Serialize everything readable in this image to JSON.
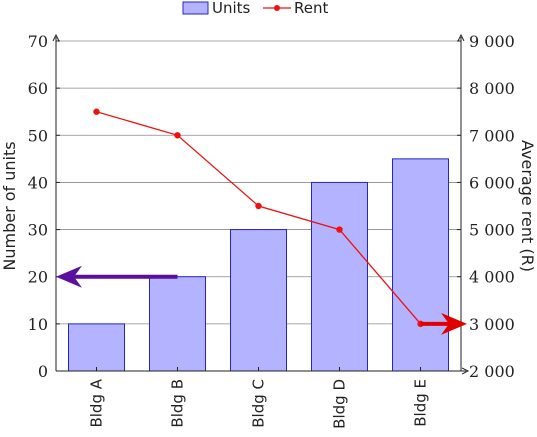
{
  "chart_data": {
    "type": "bar",
    "categories": [
      "Bldg A",
      "Bldg B",
      "Bldg C",
      "Bldg D",
      "Bldg E"
    ],
    "series": [
      {
        "name": "Units",
        "type": "bar",
        "axis": "left",
        "values": [
          10,
          20,
          30,
          40,
          45
        ]
      },
      {
        "name": "Rent",
        "type": "line",
        "axis": "right",
        "values": [
          7500,
          7000,
          5500,
          5000,
          3000
        ]
      }
    ],
    "ylabel": "Number of units",
    "y2label": "Average rent (R)",
    "ylim": [
      0,
      70
    ],
    "y2lim": [
      2000,
      9000
    ],
    "yticks": [
      "0",
      "10",
      "20",
      "30",
      "40",
      "50",
      "60",
      "70"
    ],
    "y2ticks": [
      "2 000",
      "3 000",
      "4 000",
      "5 000",
      "6 000",
      "7 000",
      "8 000",
      "9 000"
    ],
    "grid": true,
    "legend": "top-center",
    "annotations": [
      {
        "type": "arrow",
        "target": "left-axis",
        "color": "#5b0f9f",
        "from": {
          "x": "Bldg B",
          "y": 20
        },
        "to": {
          "x": "axis-left",
          "y": 20
        }
      },
      {
        "type": "arrow",
        "target": "right-axis",
        "color": "#e00000",
        "from": {
          "x": "Bldg E",
          "y": 3000
        },
        "to": {
          "x": "axis-right",
          "y": 3000
        }
      }
    ],
    "colors": {
      "bar_fill": "#b3b3ff",
      "bar_stroke": "#2525c8",
      "line": "#ee1111",
      "grid": "#8a8a8a"
    }
  }
}
